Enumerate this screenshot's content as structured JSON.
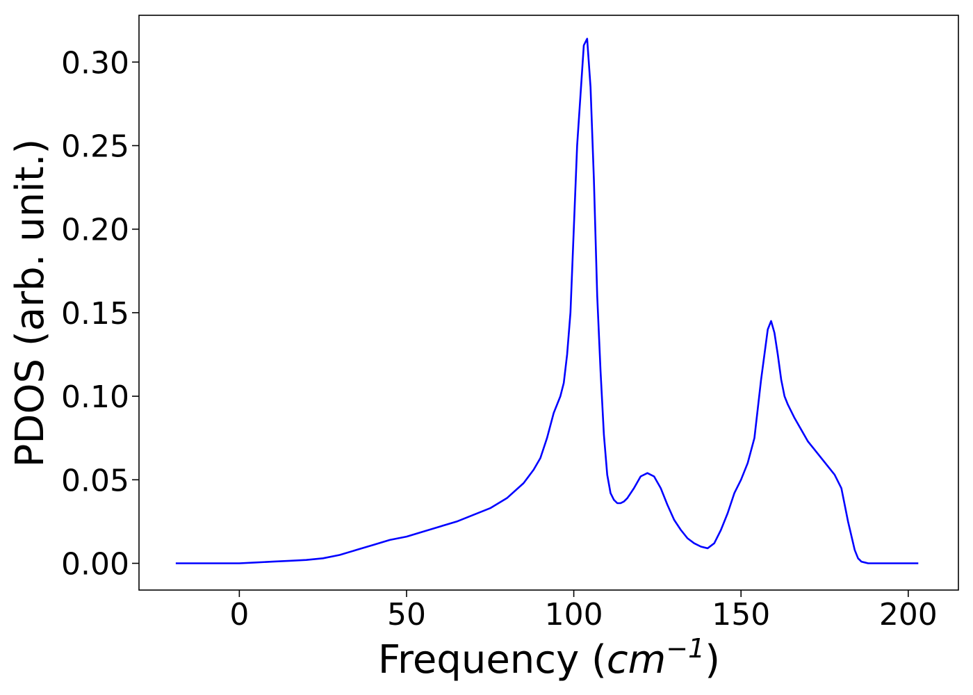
{
  "chart_data": {
    "type": "line",
    "title": "",
    "xlabel": "Frequency",
    "xlabel_unit_prefix": "cm",
    "xlabel_unit_sup": "−1",
    "ylabel": "PDOS (arb. unit.)",
    "xlim": [
      -30,
      215
    ],
    "ylim": [
      -0.016,
      0.328
    ],
    "grid": false,
    "x_ticks": [
      0,
      50,
      100,
      150,
      200
    ],
    "x_tick_labels": [
      "0",
      "50",
      "100",
      "150",
      "200"
    ],
    "y_ticks": [
      0.0,
      0.05,
      0.1,
      0.15,
      0.2,
      0.25,
      0.3
    ],
    "y_tick_labels": [
      "0.00",
      "0.05",
      "0.10",
      "0.15",
      "0.20",
      "0.25",
      "0.30"
    ],
    "series": [
      {
        "color": "#0000ff",
        "x": [
          -19,
          0,
          5,
          10,
          15,
          20,
          25,
          30,
          35,
          40,
          45,
          50,
          55,
          60,
          65,
          70,
          75,
          80,
          85,
          88,
          90,
          92,
          94,
          96,
          97,
          98,
          99,
          100,
          101,
          102,
          103,
          104,
          105,
          106,
          107,
          108,
          109,
          110,
          111,
          112,
          113,
          114,
          115,
          116,
          118,
          120,
          122,
          124,
          126,
          128,
          130,
          132,
          134,
          136,
          138,
          140,
          142,
          144,
          146,
          148,
          150,
          152,
          154,
          156,
          158,
          159,
          160,
          161,
          162,
          163,
          164,
          166,
          168,
          170,
          172,
          174,
          176,
          178,
          180,
          182,
          184,
          185,
          186,
          187,
          188,
          190,
          195,
          200,
          203
        ],
        "y": [
          0.0,
          0.0,
          0.0005,
          0.001,
          0.0015,
          0.002,
          0.003,
          0.005,
          0.008,
          0.011,
          0.014,
          0.016,
          0.019,
          0.022,
          0.025,
          0.029,
          0.033,
          0.039,
          0.048,
          0.056,
          0.063,
          0.075,
          0.09,
          0.1,
          0.108,
          0.125,
          0.15,
          0.2,
          0.25,
          0.28,
          0.31,
          0.314,
          0.285,
          0.23,
          0.16,
          0.115,
          0.077,
          0.053,
          0.042,
          0.038,
          0.036,
          0.036,
          0.037,
          0.039,
          0.045,
          0.052,
          0.054,
          0.052,
          0.045,
          0.035,
          0.026,
          0.02,
          0.015,
          0.012,
          0.01,
          0.009,
          0.012,
          0.02,
          0.03,
          0.042,
          0.05,
          0.06,
          0.075,
          0.11,
          0.14,
          0.145,
          0.138,
          0.125,
          0.11,
          0.1,
          0.095,
          0.087,
          0.08,
          0.073,
          0.068,
          0.063,
          0.058,
          0.053,
          0.045,
          0.025,
          0.008,
          0.003,
          0.001,
          0.0005,
          0.0,
          0.0,
          0.0,
          0.0,
          0.0
        ]
      }
    ]
  }
}
